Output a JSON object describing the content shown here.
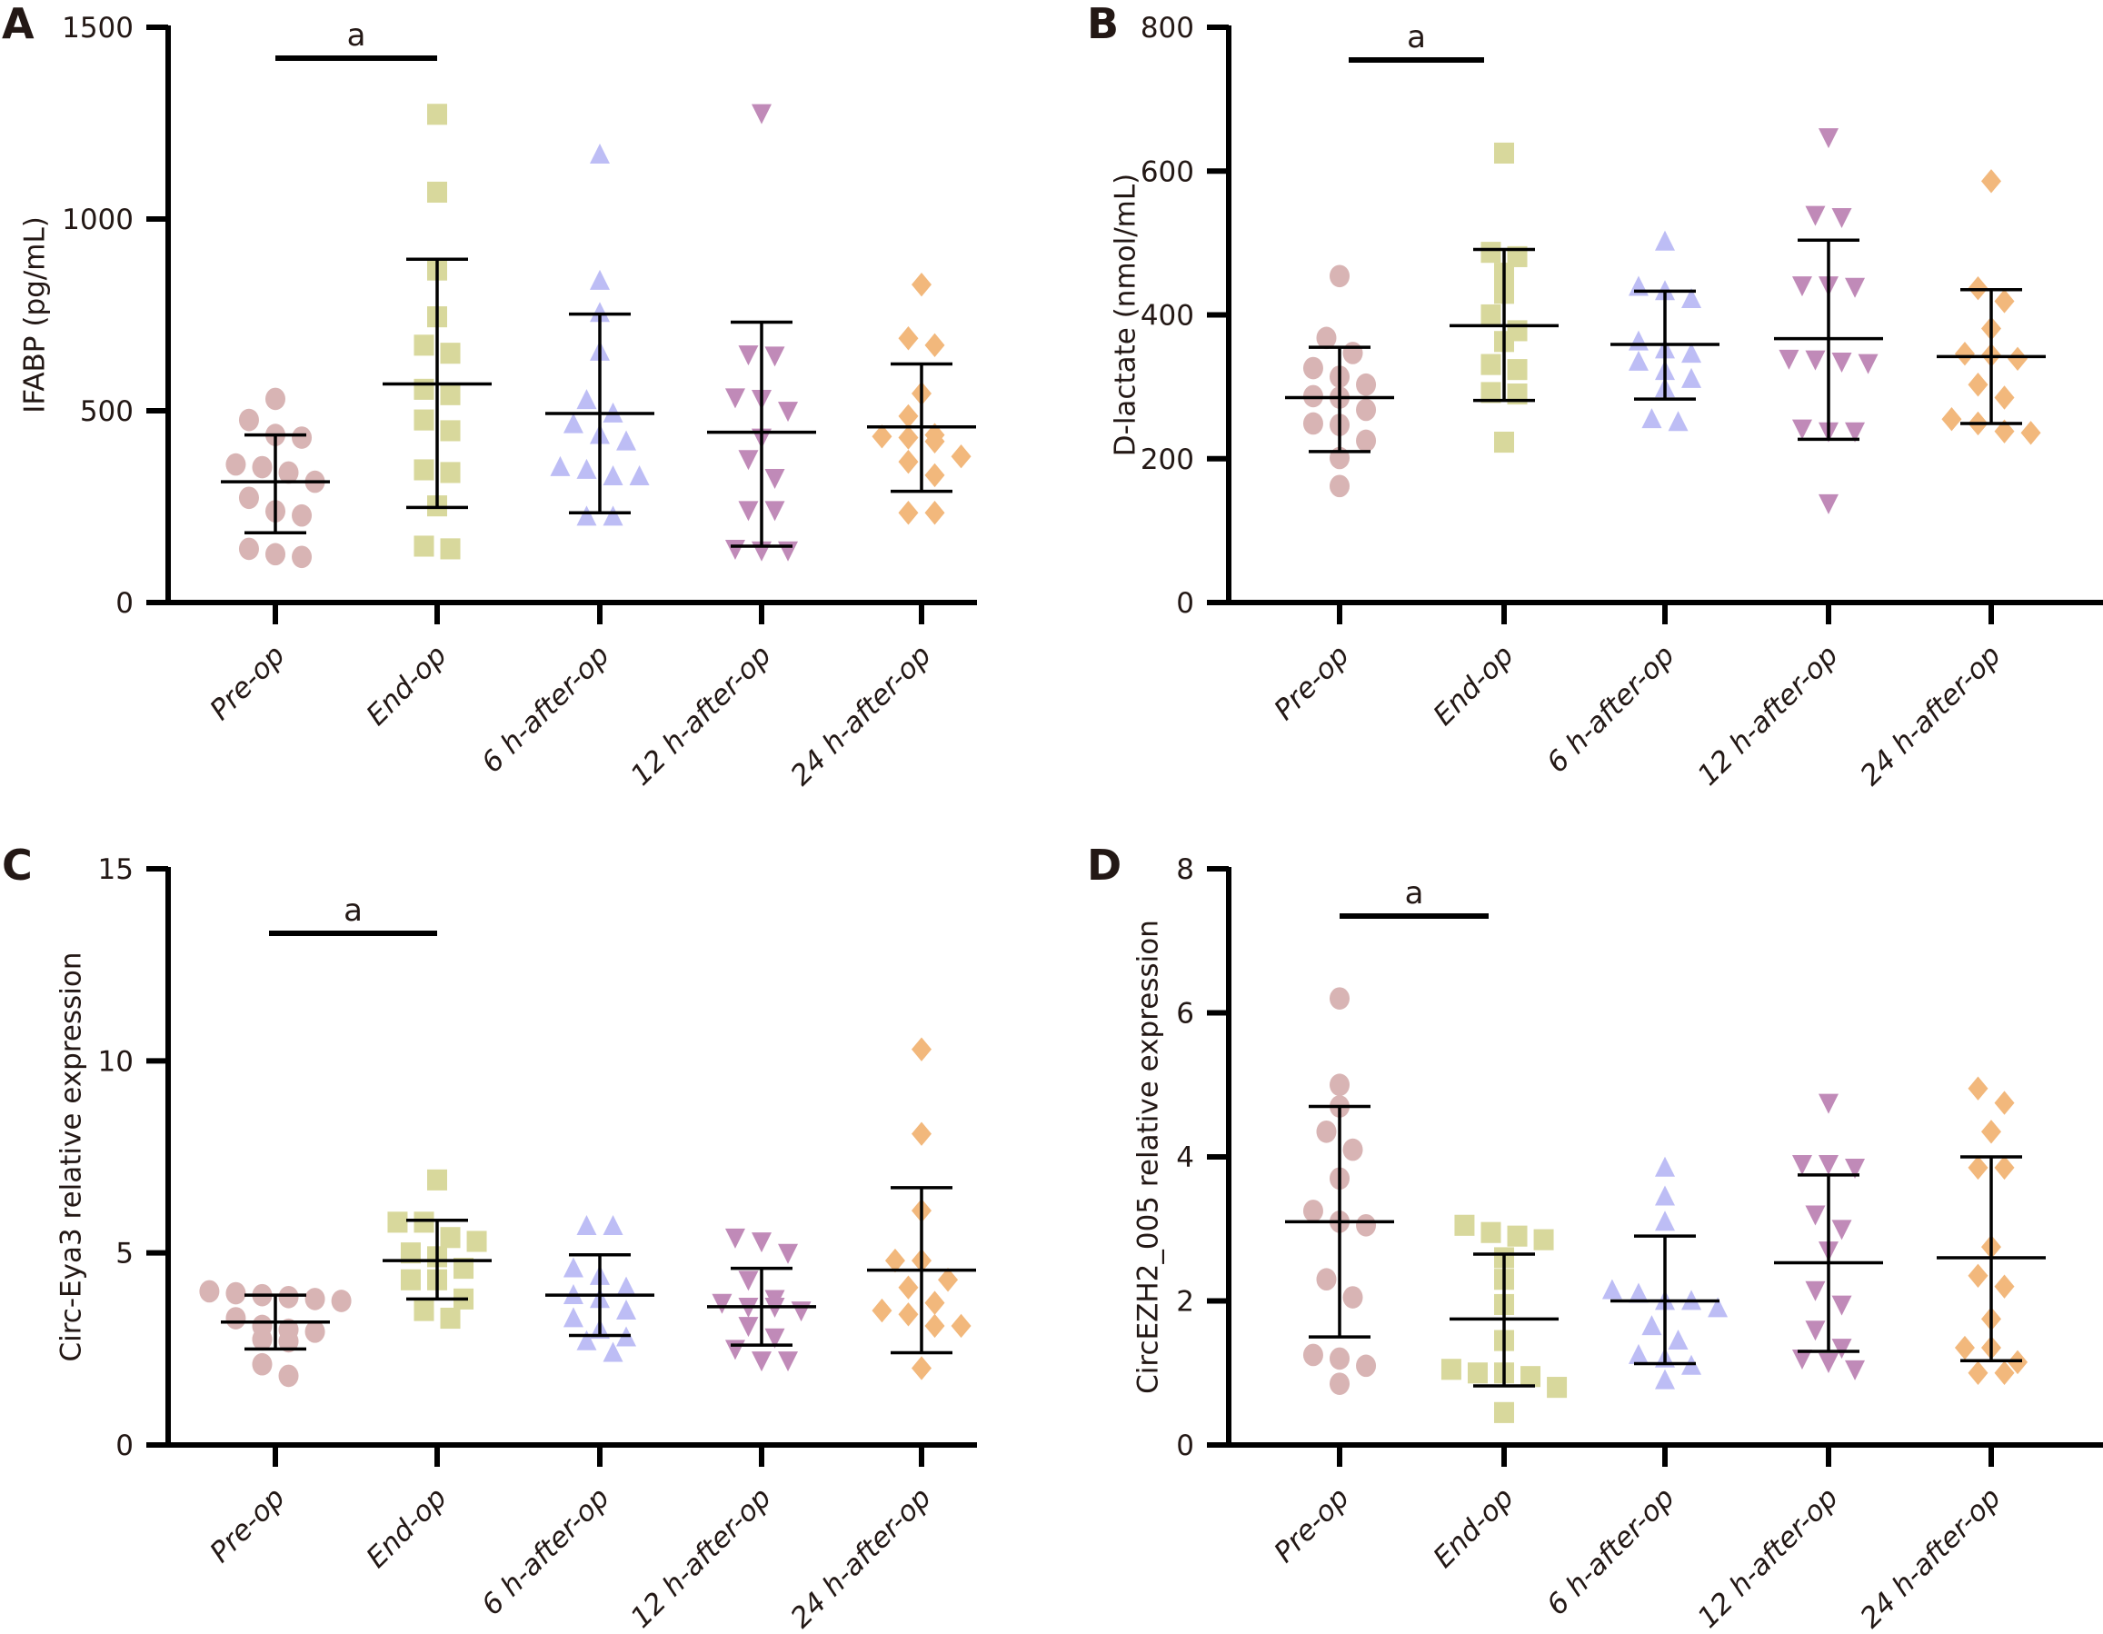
{
  "figure": {
    "categories": [
      "Pre-op",
      "End-op",
      "6 h-after-op",
      "12 h-after-op",
      "24 h-after-op"
    ],
    "group_styles": [
      {
        "name": "Pre-op",
        "marker": "circle",
        "color": "#D8B4B4"
      },
      {
        "name": "End-op",
        "marker": "square",
        "color": "#D8D89C"
      },
      {
        "name": "6 h-after-op",
        "marker": "triangle-up",
        "color": "#BDBDF5"
      },
      {
        "name": "12 h-after-op",
        "marker": "triangle-down",
        "color": "#C08AB8"
      },
      {
        "name": "24 h-after-op",
        "marker": "diamond",
        "color": "#F2B87C"
      }
    ],
    "axis_color": "#000000",
    "text_color": "#231815"
  },
  "chart_data": [
    {
      "panel": "A",
      "type": "scatter",
      "title": "",
      "ylabel": "IFABP (pg/mL)",
      "xlabel": "",
      "ylim": [
        0,
        1500
      ],
      "yticks": [
        0,
        500,
        1000,
        1500
      ],
      "categories": [
        "Pre-op",
        "End-op",
        "6 h-after-op",
        "12 h-after-op",
        "24 h-after-op"
      ],
      "significance": {
        "from": "Pre-op",
        "to": "End-op",
        "label": "a"
      },
      "series": [
        {
          "name": "Pre-op",
          "values": [
            531,
            476,
            437,
            430,
            360,
            353,
            339,
            315,
            273,
            238,
            227,
            140,
            126,
            119
          ],
          "mean": 315,
          "sd_upper": 437,
          "sd_lower": 182
        },
        {
          "name": "End-op",
          "values": [
            1273,
            1070,
            867,
            745,
            671,
            650,
            556,
            542,
            476,
            448,
            346,
            339,
            252,
            147,
            140
          ],
          "mean": 570,
          "sd_upper": 895,
          "sd_lower": 248
        },
        {
          "name": "6 h-after-op",
          "values": [
            1168,
            839,
            755,
            654,
            528,
            493,
            465,
            437,
            420,
            353,
            346,
            329,
            329,
            224,
            224
          ],
          "mean": 493,
          "sd_upper": 752,
          "sd_lower": 234
        },
        {
          "name": "12 h-after-op",
          "values": [
            1276,
            647,
            644,
            535,
            531,
            500,
            430,
            374,
            325,
            241,
            241,
            140,
            136,
            136
          ],
          "mean": 444,
          "sd_upper": 731,
          "sd_lower": 147
        },
        {
          "name": "24 h-after-op",
          "values": [
            829,
            689,
            671,
            545,
            486,
            437,
            433,
            430,
            420,
            381,
            367,
            332,
            234,
            234
          ],
          "mean": 458,
          "sd_upper": 622,
          "sd_lower": 290
        }
      ]
    },
    {
      "panel": "B",
      "type": "scatter",
      "title": "",
      "ylabel": "D-lactate (nmol/mL)",
      "xlabel": "",
      "ylim": [
        0,
        800
      ],
      "yticks": [
        0,
        200,
        400,
        600,
        800
      ],
      "categories": [
        "Pre-op",
        "End-op",
        "6 h-after-op",
        "12 h-after-op",
        "24 h-after-op"
      ],
      "significance": {
        "from": "Pre-op",
        "to": "End-op",
        "label": "a"
      },
      "series": [
        {
          "name": "Pre-op",
          "values": [
            454,
            368,
            347,
            326,
            314,
            303,
            287,
            285,
            268,
            249,
            247,
            225,
            201,
            162
          ],
          "mean": 285,
          "sd_upper": 355,
          "sd_lower": 210
        },
        {
          "name": "End-op",
          "values": [
            625,
            487,
            481,
            458,
            430,
            400,
            378,
            363,
            331,
            324,
            292,
            290,
            223
          ],
          "mean": 385,
          "sd_upper": 491,
          "sd_lower": 281
        },
        {
          "name": "6 h-after-op",
          "values": [
            502,
            439,
            433,
            422,
            363,
            352,
            346,
            335,
            322,
            311,
            298,
            255,
            251
          ],
          "mean": 359,
          "sd_upper": 433,
          "sd_lower": 283
        },
        {
          "name": "12 h-after-op",
          "values": [
            647,
            539,
            536,
            441,
            441,
            439,
            339,
            338,
            335,
            333,
            242,
            238,
            238,
            138
          ],
          "mean": 367,
          "sd_upper": 504,
          "sd_lower": 227
        },
        {
          "name": "24 h-after-op",
          "values": [
            586,
            437,
            419,
            381,
            346,
            344,
            339,
            303,
            285,
            255,
            249,
            238,
            236
          ],
          "mean": 342,
          "sd_upper": 435,
          "sd_lower": 249
        }
      ]
    },
    {
      "panel": "C",
      "type": "scatter",
      "title": "",
      "ylabel": "Circ-Eya3 relative expression",
      "xlabel": "",
      "ylim": [
        0,
        15
      ],
      "yticks": [
        0,
        5,
        10,
        15
      ],
      "categories": [
        "Pre-op",
        "End-op",
        "6 h-after-op",
        "12 h-after-op",
        "24 h-after-op"
      ],
      "significance": {
        "from": "Pre-op",
        "to": "End-op",
        "label": "a"
      },
      "series": [
        {
          "name": "Pre-op",
          "values": [
            4.0,
            3.95,
            3.9,
            3.85,
            3.8,
            3.75,
            3.3,
            3.1,
            3.0,
            2.95,
            2.75,
            2.7,
            2.1,
            1.8
          ],
          "mean": 3.2,
          "sd_upper": 3.9,
          "sd_lower": 2.5
        },
        {
          "name": "End-op",
          "values": [
            6.9,
            5.8,
            5.8,
            5.4,
            5.3,
            5.0,
            4.9,
            4.6,
            4.3,
            4.3,
            3.8,
            3.5,
            3.3
          ],
          "mean": 4.8,
          "sd_upper": 5.85,
          "sd_lower": 3.8
        },
        {
          "name": "6 h-after-op",
          "values": [
            5.7,
            5.7,
            4.6,
            4.4,
            4.1,
            3.9,
            3.8,
            3.5,
            3.3,
            3.0,
            2.8,
            2.7,
            2.4
          ],
          "mean": 3.9,
          "sd_upper": 4.95,
          "sd_lower": 2.85
        },
        {
          "name": "12 h-after-op",
          "values": [
            5.4,
            5.3,
            5.0,
            4.3,
            3.8,
            3.7,
            3.6,
            3.6,
            3.5,
            3.1,
            2.8,
            2.5,
            2.2,
            2.2
          ],
          "mean": 3.6,
          "sd_upper": 4.6,
          "sd_lower": 2.6
        },
        {
          "name": "24 h-after-op",
          "values": [
            10.3,
            8.1,
            6.1,
            4.8,
            4.8,
            4.3,
            4.1,
            3.7,
            3.5,
            3.4,
            3.1,
            3.1,
            2.0
          ],
          "mean": 4.55,
          "sd_upper": 6.7,
          "sd_lower": 2.4
        }
      ]
    },
    {
      "panel": "D",
      "type": "scatter",
      "title": "",
      "ylabel": "CircEZH2_005 relative expression",
      "xlabel": "",
      "ylim": [
        0,
        8
      ],
      "yticks": [
        0,
        2,
        4,
        6,
        8
      ],
      "categories": [
        "Pre-op",
        "End-op",
        "6 h-after-op",
        "12 h-after-op",
        "24 h-after-op"
      ],
      "significance": {
        "from": "Pre-op",
        "to": "End-op",
        "label": "a"
      },
      "series": [
        {
          "name": "Pre-op",
          "values": [
            6.2,
            5.0,
            4.7,
            4.35,
            4.1,
            3.7,
            3.25,
            3.1,
            3.05,
            2.3,
            2.05,
            1.25,
            1.2,
            1.1,
            0.85
          ],
          "mean": 3.1,
          "sd_upper": 4.7,
          "sd_lower": 1.5
        },
        {
          "name": "End-op",
          "values": [
            3.05,
            2.95,
            2.9,
            2.85,
            2.6,
            2.3,
            1.95,
            1.45,
            1.05,
            1.0,
            1.0,
            0.95,
            0.8,
            0.45
          ],
          "mean": 1.75,
          "sd_upper": 2.65,
          "sd_lower": 0.82
        },
        {
          "name": "6 h-after-op",
          "values": [
            3.85,
            3.45,
            3.1,
            2.15,
            2.1,
            2.0,
            2.0,
            1.9,
            1.65,
            1.45,
            1.25,
            1.2,
            1.1,
            0.9
          ],
          "mean": 2.0,
          "sd_upper": 2.9,
          "sd_lower": 1.13
        },
        {
          "name": "12 h-after-op",
          "values": [
            4.75,
            3.9,
            3.9,
            3.85,
            3.2,
            3.0,
            2.7,
            2.15,
            1.95,
            1.6,
            1.35,
            1.2,
            1.15,
            1.05
          ],
          "mean": 2.53,
          "sd_upper": 3.75,
          "sd_lower": 1.3
        },
        {
          "name": "24 h-after-op",
          "values": [
            4.95,
            4.75,
            4.35,
            3.85,
            3.85,
            2.75,
            2.35,
            2.2,
            1.75,
            1.35,
            1.35,
            1.15,
            1.0,
            1.0
          ],
          "mean": 2.6,
          "sd_upper": 4.0,
          "sd_lower": 1.17
        }
      ]
    }
  ]
}
